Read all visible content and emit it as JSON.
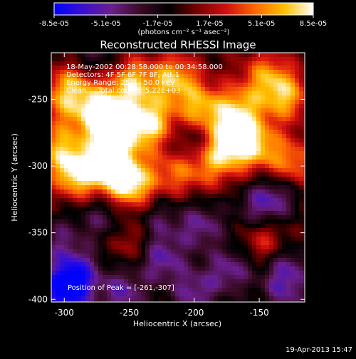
{
  "colorbar": {
    "tick_labels": [
      "-8.5e-05",
      "-5.1e-05",
      "-1.7e-05",
      "1.7e-05",
      "5.1e-05",
      "8.5e-05"
    ],
    "tick_values": [
      -8.5e-05,
      -5.1e-05,
      -1.7e-05,
      1.7e-05,
      5.1e-05,
      8.5e-05
    ],
    "range": [
      -8.5e-05,
      8.5e-05
    ],
    "units_label": "(photons cm⁻² s⁻¹ asec⁻²)",
    "stops": [
      "#0000ff",
      "#3a10d0",
      "#6a1f8a",
      "#3a0a24",
      "#000000",
      "#7a0000",
      "#d21010",
      "#ff6a00",
      "#ffc000",
      "#ffffff"
    ]
  },
  "chart_data": {
    "type": "heatmap",
    "title": "Reconstructed RHESSI Image",
    "xlabel": "Heliocentric X (arcsec)",
    "ylabel": "Heliocentric Y (arcsec)",
    "xlim": [
      -310,
      -115
    ],
    "ylim": [
      -402,
      -215
    ],
    "x_ticks": [
      -300,
      -250,
      -200,
      -150
    ],
    "x_tick_labels": [
      "-300",
      "-250",
      "-200",
      "-150"
    ],
    "y_ticks": [
      -400,
      -350,
      -300,
      -250
    ],
    "y_tick_labels": [
      "-400",
      "-350",
      "-300",
      "-250"
    ],
    "annotations": [
      "18-May-2002 00:28:58.000 to 00:34:58.000",
      "Detectors: 4F 5F 6F 7F 8F, Att 1",
      "Energy Range: 25.0 - 50.0 keV",
      "Clean     Total counts: 5.22E+03"
    ],
    "peak_label": "Position of Peak = [-261,-307]",
    "peak": [
      -261,
      -307
    ],
    "blobs": [
      {
        "x": -290,
        "y": -305,
        "v": 0.95
      },
      {
        "x": -272,
        "y": -260,
        "v": 0.9
      },
      {
        "x": -262,
        "y": -300,
        "v": 1.0
      },
      {
        "x": -248,
        "y": -315,
        "v": 0.85
      },
      {
        "x": -235,
        "y": -268,
        "v": 0.95
      },
      {
        "x": -262,
        "y": -272,
        "v": 0.85
      },
      {
        "x": -248,
        "y": -238,
        "v": 0.75
      },
      {
        "x": -300,
        "y": -250,
        "v": 0.55
      },
      {
        "x": -303,
        "y": -285,
        "v": 0.6
      },
      {
        "x": -215,
        "y": -235,
        "v": 0.75
      },
      {
        "x": -195,
        "y": -258,
        "v": 0.75
      },
      {
        "x": -172,
        "y": -282,
        "v": 0.9
      },
      {
        "x": -165,
        "y": -258,
        "v": 0.7
      },
      {
        "x": -130,
        "y": -248,
        "v": 0.7
      },
      {
        "x": -152,
        "y": -285,
        "v": 0.65
      },
      {
        "x": -125,
        "y": -298,
        "v": 0.6
      },
      {
        "x": -188,
        "y": -298,
        "v": 0.55
      },
      {
        "x": -215,
        "y": -305,
        "v": 0.5
      },
      {
        "x": -145,
        "y": -232,
        "v": 0.55
      },
      {
        "x": -290,
        "y": -235,
        "v": 0.5
      },
      {
        "x": -250,
        "y": -355,
        "v": 0.35
      },
      {
        "x": -145,
        "y": -358,
        "v": 0.45
      },
      {
        "x": -150,
        "y": -330,
        "v": -0.45
      },
      {
        "x": -195,
        "y": -345,
        "v": -0.55
      },
      {
        "x": -225,
        "y": -370,
        "v": -0.6
      },
      {
        "x": -172,
        "y": -378,
        "v": -0.55
      },
      {
        "x": -290,
        "y": -380,
        "v": -0.65
      },
      {
        "x": -300,
        "y": -395,
        "v": -0.95
      },
      {
        "x": -255,
        "y": -395,
        "v": -0.6
      },
      {
        "x": -200,
        "y": -395,
        "v": -0.55
      },
      {
        "x": -130,
        "y": -375,
        "v": -0.5
      },
      {
        "x": -270,
        "y": -340,
        "v": -0.45
      },
      {
        "x": -230,
        "y": -340,
        "v": -0.4
      },
      {
        "x": -280,
        "y": -220,
        "v": -0.45
      },
      {
        "x": -200,
        "y": -280,
        "v": -0.4
      },
      {
        "x": -130,
        "y": -395,
        "v": -0.45
      },
      {
        "x": -135,
        "y": -322,
        "v": -0.4
      },
      {
        "x": -305,
        "y": -355,
        "v": -0.4
      }
    ]
  },
  "footer": {
    "timestamp": "19-Apr-2013 15:47"
  }
}
